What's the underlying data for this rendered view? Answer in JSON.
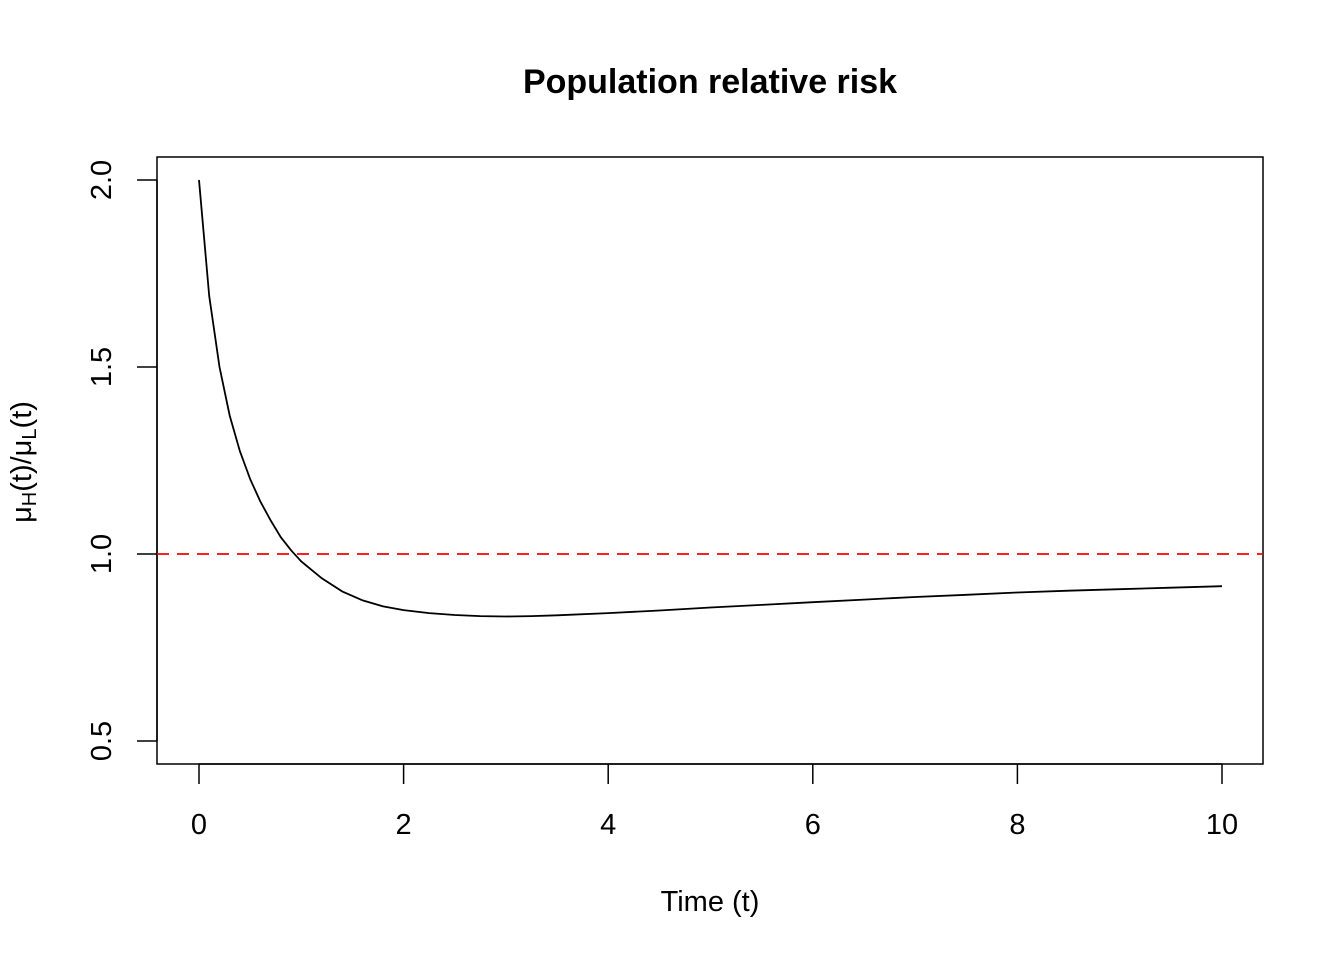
{
  "chart_data": {
    "type": "line",
    "title": "Population relative risk",
    "xlabel": "Time (t)",
    "ylabel": {
      "mu1": "μ",
      "sub1": "H",
      "mid": "(t)/",
      "mu2": "μ",
      "sub2": "L",
      "end": "(t)"
    },
    "xlim": [
      0,
      10
    ],
    "ylim": [
      0.5,
      2.0
    ],
    "x_ticks": [
      0,
      2,
      4,
      6,
      8,
      10
    ],
    "x_tick_labels": [
      "0",
      "2",
      "4",
      "6",
      "8",
      "10"
    ],
    "y_ticks": [
      0.5,
      1.0,
      1.5,
      2.0
    ],
    "y_tick_labels": [
      "0.5",
      "1.0",
      "1.5",
      "2.0"
    ],
    "series": [
      {
        "name": "relative risk",
        "color": "#000000",
        "style": "solid",
        "x": [
          0,
          0.1,
          0.2,
          0.3,
          0.4,
          0.5,
          0.6,
          0.7,
          0.8,
          0.9,
          1.0,
          1.2,
          1.4,
          1.6,
          1.8,
          2.0,
          2.25,
          2.5,
          2.75,
          3.0,
          3.25,
          3.5,
          4.0,
          4.5,
          5.0,
          5.5,
          6.0,
          6.5,
          7.0,
          7.5,
          8.0,
          8.5,
          9.0,
          9.5,
          10.0
        ],
        "y": [
          2.0,
          1.69,
          1.5,
          1.37,
          1.275,
          1.2,
          1.14,
          1.09,
          1.045,
          1.01,
          0.98,
          0.935,
          0.9,
          0.876,
          0.86,
          0.85,
          0.842,
          0.837,
          0.834,
          0.833,
          0.834,
          0.836,
          0.842,
          0.849,
          0.857,
          0.864,
          0.871,
          0.878,
          0.885,
          0.891,
          0.897,
          0.902,
          0.906,
          0.91,
          0.914
        ]
      }
    ],
    "reference_line": {
      "y": 1.0,
      "color": "#ff0000",
      "style": "dashed"
    }
  }
}
